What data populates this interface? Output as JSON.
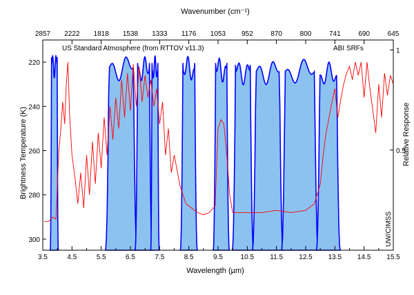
{
  "chart_data": {
    "type": "line",
    "title": "",
    "xlabel": "Wavelength (µm)",
    "ylabel": "Brightness Temperature (K)",
    "x2label": "Wavenumber (cm⁻¹)",
    "y2label": "Relative Response",
    "xlim": [
      3.5,
      15.5
    ],
    "ylim": [
      305,
      210
    ],
    "y2lim": [
      0,
      1.05
    ],
    "x_ticks": [
      "3.5",
      "4.5",
      "5.5",
      "6.5",
      "7.5",
      "8.5",
      "9.5",
      "10.5",
      "11.5",
      "12.5",
      "13.5",
      "14.5",
      "15.5"
    ],
    "x_minor_ticks": [
      "4.0",
      "5.0",
      "6.0",
      "7.0",
      "8.0",
      "9.0",
      "10.0",
      "11.0",
      "12.0",
      "13.0",
      "14.0",
      "15.0"
    ],
    "y_ticks": [
      "220",
      "240",
      "260",
      "280",
      "300"
    ],
    "y2_ticks": [
      "0.5",
      "1"
    ],
    "x2_ticks": [
      "2857",
      "2222",
      "1818",
      "1538",
      "1333",
      "1176",
      "1053",
      "952",
      "870",
      "800",
      "741",
      "690",
      "645"
    ],
    "annotations": {
      "atmosphere_label": "US Standard Atmosphere (from RTTOV v11.3)",
      "srf_label": "ABI SRFs",
      "credit": "UW/CIMSS"
    },
    "colors": {
      "brightness_temperature": "#ff0000",
      "srf_line": "#0000ff",
      "srf_fill": "#8cc2f0",
      "atmosphere_label_color": "#000000",
      "srf_label_color": "#0000ff"
    },
    "series": [
      {
        "name": "US Standard Atmosphere (from RTTOV v11.3)",
        "kind": "brightness_temperature",
        "x": [
          3.55,
          3.7,
          3.85,
          3.95,
          4.05,
          4.12,
          4.18,
          4.25,
          4.3,
          4.36,
          4.42,
          4.5,
          4.6,
          4.7,
          4.8,
          4.9,
          5.0,
          5.1,
          5.2,
          5.3,
          5.4,
          5.5,
          5.6,
          5.7,
          5.8,
          5.9,
          6.0,
          6.1,
          6.2,
          6.3,
          6.4,
          6.5,
          6.6,
          6.7,
          6.8,
          6.9,
          7.0,
          7.1,
          7.2,
          7.3,
          7.4,
          7.5,
          7.6,
          7.7,
          7.8,
          7.9,
          8.0,
          8.2,
          8.4,
          8.6,
          8.8,
          9.0,
          9.2,
          9.4,
          9.5,
          9.6,
          9.7,
          9.8,
          9.9,
          10.0,
          10.5,
          11.0,
          11.5,
          12.0,
          12.5,
          12.8,
          13.0,
          13.1,
          13.2,
          13.3,
          13.4,
          13.5,
          13.6,
          13.7,
          13.8,
          13.9,
          14.0,
          14.1,
          14.2,
          14.3,
          14.4,
          14.5,
          14.6,
          14.7,
          14.8,
          14.9,
          15.0,
          15.1,
          15.2,
          15.3,
          15.4,
          15.5
        ],
        "y": [
          292,
          292,
          290,
          291,
          260,
          250,
          238,
          248,
          231,
          220,
          244,
          262,
          272,
          284,
          270,
          286,
          262,
          280,
          256,
          275,
          252,
          268,
          245,
          262,
          240,
          255,
          236,
          250,
          228,
          245,
          225,
          242,
          221,
          240,
          222,
          238,
          226,
          236,
          228,
          240,
          232,
          248,
          238,
          262,
          250,
          270,
          262,
          276,
          284,
          286,
          288,
          289,
          288,
          285,
          250,
          246,
          248,
          262,
          280,
          288,
          288,
          288,
          287,
          288,
          287,
          284,
          275,
          262,
          252,
          245,
          238,
          232,
          245,
          237,
          230,
          225,
          222,
          228,
          220,
          226,
          220,
          236,
          220,
          232,
          242,
          252,
          230,
          245,
          225,
          235,
          226,
          230
        ],
        "approximate": true
      },
      {
        "name": "ABI SRFs",
        "kind": "srf_bands",
        "bands": [
          {
            "center": 3.9,
            "lo": 3.8,
            "hi": 3.99,
            "peak": 1.0
          },
          {
            "center": 6.19,
            "lo": 5.77,
            "hi": 6.6,
            "peak": 0.98
          },
          {
            "center": 6.95,
            "lo": 6.75,
            "hi": 7.15,
            "peak": 0.97
          },
          {
            "center": 7.34,
            "lo": 7.24,
            "hi": 7.44,
            "peak": 0.97
          },
          {
            "center": 8.5,
            "lo": 8.3,
            "hi": 8.7,
            "peak": 0.97
          },
          {
            "center": 9.61,
            "lo": 9.42,
            "hi": 9.8,
            "peak": 0.97
          },
          {
            "center": 10.35,
            "lo": 10.1,
            "hi": 10.6,
            "peak": 0.96
          },
          {
            "center": 11.2,
            "lo": 10.8,
            "hi": 11.6,
            "peak": 0.96
          },
          {
            "center": 12.3,
            "lo": 11.8,
            "hi": 12.8,
            "peak": 0.96
          },
          {
            "center": 13.3,
            "lo": 12.99,
            "hi": 13.56,
            "peak": 0.94
          }
        ]
      }
    ]
  }
}
